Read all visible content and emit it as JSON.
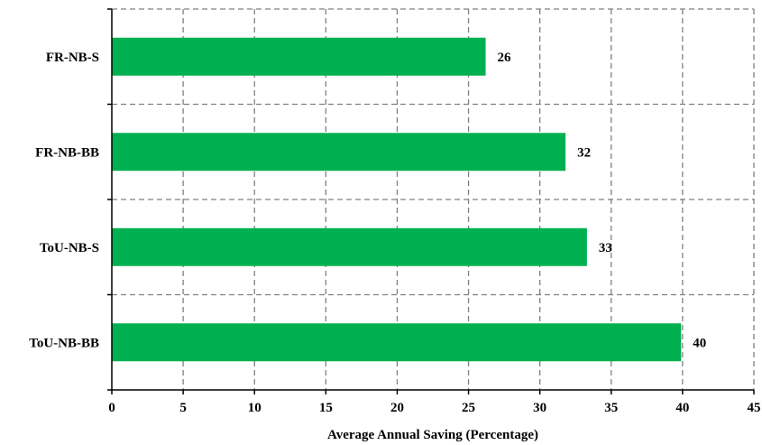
{
  "chart_data": {
    "type": "bar",
    "orientation": "horizontal",
    "categories": [
      "FR-NB-S",
      "FR-NB-BB",
      "ToU-NB-S",
      "ToU-NB-BB"
    ],
    "values": [
      26.2,
      31.8,
      33.3,
      39.9
    ],
    "data_labels": [
      "26",
      "32",
      "33",
      "40"
    ],
    "xlabel": "Average  Annual Saving (Percentage)",
    "ylabel": "",
    "title": "",
    "xlim": [
      0,
      45
    ],
    "xticks": [
      0,
      5,
      10,
      15,
      20,
      25,
      30,
      35,
      40,
      45
    ],
    "grid": true,
    "legend": "none",
    "bar_color": "#00b050",
    "grid_color": "#808080"
  }
}
